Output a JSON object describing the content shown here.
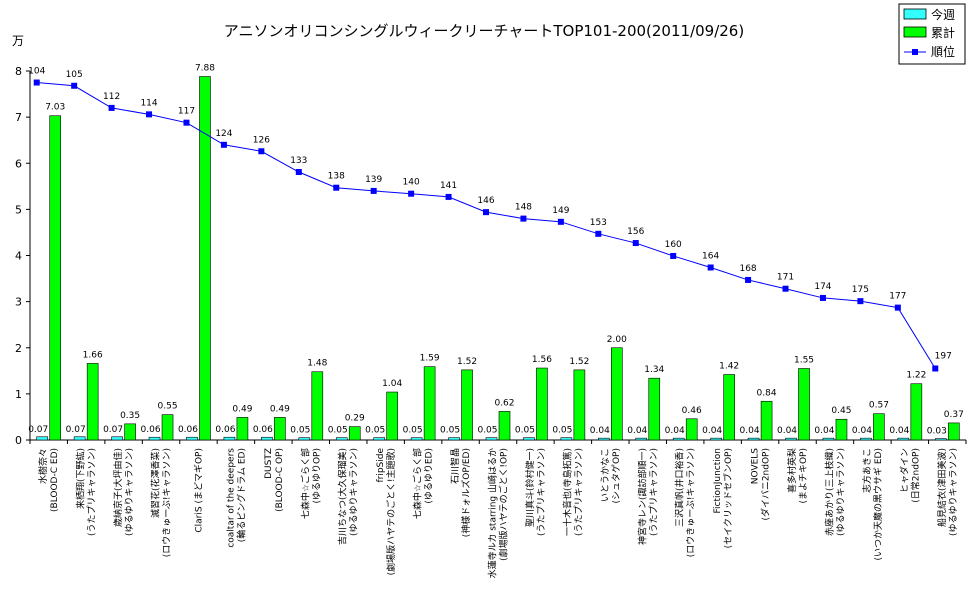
{
  "chart_data": {
    "type": "bar",
    "title": "アニソンオリコンシングルウィークリーチャートTOP101-200(2011/09/26)",
    "ylabel": "万",
    "ylim": [
      0,
      8
    ],
    "yticks": [
      "0",
      "1",
      "2",
      "3",
      "4",
      "5",
      "6",
      "7",
      "8"
    ],
    "grid": false,
    "legend_position": "top-right",
    "colors": {
      "weekly": "#33ffff",
      "cumulative": "#00ff00",
      "rank": "#0000ff"
    },
    "categories": [
      "水樹奈々\n(BLOOD-C ED)",
      "来栖翔(下野紘)\n(うたプリキャラソン)",
      "歳納京子(大坪由佳)\n(ゆるゆりキャラソン)",
      "滅習花(花澤香菜)\n(ロウきゅーぶ!キャラソン)",
      "ClariS (まどマギOP)",
      "coaltar of the deepers\n(輪るピングドラム ED)",
      "DUSTZ\n(BLOOD-C OP)",
      "七森中☆ごらく部\n(ゆるゆりOP)",
      "吉川ちなつ(大久保瑠美)\n(ゆるゆりキャラソン)",
      "fripSide\n(劇場版ハヤテのごとく!主題歌)",
      "七森中☆ごらく部\n(ゆるゆりED)",
      "石川智晶\n(神様ドォルズOP/ED)",
      "水蓮寺ルカ starring 山崎はるか\n(劇場版ハヤテのごとく!OP)",
      "聖川真斗(鈴村健一)\n(うたプリキャラソン)",
      "一十木音也(寺島拓篤)\n(うたプリキャラソン)",
      "いとうかなこ\n(シュタゲOP)",
      "神宮寺レン(諏訪部順一)\n(うたプリキャラソン)",
      "三沢真帆(井口裕香)\n(ロウきゅーぶ!キャラソン)",
      "FictionJunction\n(セイクリッドセブンOP)",
      "NOVELS\n(ダイバニ2ndOP)",
      "喜多村英梨\n(まよチキOP)",
      "赤座あかり(三上枝織)\n(ゆるゆりキャラソン)",
      "志方あきこ\n(いつか天魔の黒ウサギ ED)",
      "ヒャダイン\n(日常2ndOP)",
      "船見結衣(津田美波)\n(ゆるゆりキャラソン)"
    ],
    "series": [
      {
        "name": "今週",
        "kind": "bar",
        "values": [
          0.07,
          0.07,
          0.07,
          0.06,
          0.06,
          0.06,
          0.06,
          0.05,
          0.05,
          0.05,
          0.05,
          0.05,
          0.05,
          0.05,
          0.05,
          0.04,
          0.04,
          0.04,
          0.04,
          0.04,
          0.04,
          0.04,
          0.04,
          0.04,
          0.03
        ]
      },
      {
        "name": "累計",
        "kind": "bar",
        "values": [
          7.03,
          1.66,
          0.35,
          0.55,
          7.88,
          0.49,
          0.49,
          1.48,
          0.29,
          1.04,
          1.59,
          1.52,
          0.62,
          1.56,
          1.52,
          2.0,
          1.34,
          0.46,
          1.42,
          0.84,
          1.55,
          0.45,
          0.57,
          1.22,
          0.37
        ]
      },
      {
        "name": "順位",
        "kind": "line",
        "values": [
          104,
          105,
          112,
          114,
          117,
          124,
          126,
          133,
          138,
          139,
          140,
          141,
          146,
          148,
          149,
          153,
          156,
          160,
          164,
          168,
          171,
          174,
          175,
          177,
          197
        ]
      }
    ],
    "data_labels": {
      "weekly": [
        "0.07",
        "0.07",
        "0.07",
        "0.06",
        "0.06",
        "0.06",
        "0.06",
        "0.05",
        "0.05",
        "0.05",
        "0.05",
        "0.05",
        "0.05",
        "0.05",
        "0.05",
        "0.04",
        "0.04",
        "0.04",
        "0.04",
        "0.04",
        "0.04",
        "0.04",
        "0.04",
        "0.04",
        "0.03"
      ],
      "cumulative": [
        "7.03",
        "1.66",
        "0.35",
        "0.55",
        "7.88",
        "0.49",
        "0.49",
        "1.48",
        "0.29",
        "1.04",
        "1.59",
        "1.52",
        "0.62",
        "1.56",
        "1.52",
        "2.00",
        "1.34",
        "0.46",
        "1.42",
        "0.84",
        "1.55",
        "0.45",
        "0.57",
        "1.22",
        "0.37"
      ]
    },
    "rank_display": [
      7.75,
      7.68,
      7.2,
      7.06,
      6.88,
      6.4,
      6.26,
      5.81,
      5.47,
      5.4,
      5.34,
      5.27,
      4.94,
      4.8,
      4.73,
      4.47,
      4.27,
      3.99,
      3.74,
      3.47,
      3.28,
      3.08,
      3.01,
      2.87,
      1.55
    ]
  }
}
